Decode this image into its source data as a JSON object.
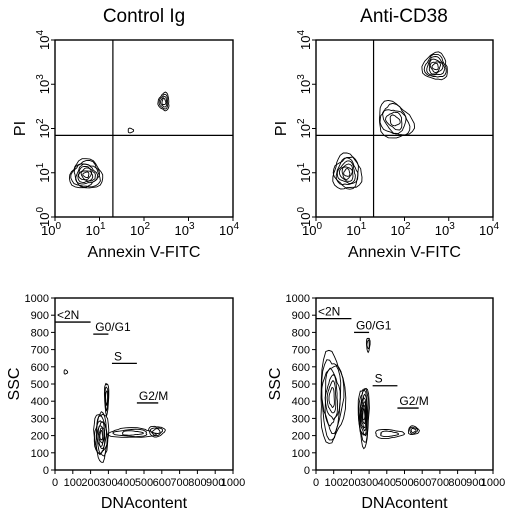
{
  "figure": {
    "panel_titles": [
      "Control Ig",
      "Anti-CD38"
    ]
  },
  "chart_data": [
    {
      "type": "scatter",
      "subtype": "contour",
      "title": "Control Ig",
      "xlabel": "Annexin V-FITC",
      "ylabel": "PI",
      "scale": "log",
      "xlim": [
        1,
        10000
      ],
      "ylim": [
        1,
        10000
      ],
      "x_ticks": [
        {
          "base": "10",
          "exp": "0"
        },
        {
          "base": "10",
          "exp": "1"
        },
        {
          "base": "10",
          "exp": "2"
        },
        {
          "base": "10",
          "exp": "3"
        },
        {
          "base": "10",
          "exp": "4"
        }
      ],
      "y_ticks": [
        {
          "base": "10",
          "exp": "0"
        },
        {
          "base": "10",
          "exp": "1"
        },
        {
          "base": "10",
          "exp": "2"
        },
        {
          "base": "10",
          "exp": "3"
        },
        {
          "base": "10",
          "exp": "4"
        }
      ],
      "quadrant_gate": {
        "x": 20,
        "y": 70
      },
      "populations": [
        {
          "x": 5,
          "y": 9,
          "sx": 0.36,
          "sy": 0.33,
          "levels": 8
        },
        {
          "x": 280,
          "y": 400,
          "sx": 0.12,
          "sy": 0.2,
          "levels": 4
        },
        {
          "x": 50,
          "y": 90,
          "sx": 0.06,
          "sy": 0.05,
          "levels": 1
        }
      ]
    },
    {
      "type": "scatter",
      "subtype": "contour",
      "title": "Anti-CD38",
      "xlabel": "Annexin V-FITC",
      "ylabel": "PI",
      "scale": "log",
      "xlim": [
        1,
        10000
      ],
      "ylim": [
        1,
        10000
      ],
      "x_ticks": [
        {
          "base": "10",
          "exp": "0"
        },
        {
          "base": "10",
          "exp": "1"
        },
        {
          "base": "10",
          "exp": "2"
        },
        {
          "base": "10",
          "exp": "3"
        },
        {
          "base": "10",
          "exp": "4"
        }
      ],
      "y_ticks": [
        {
          "base": "10",
          "exp": "0"
        },
        {
          "base": "10",
          "exp": "1"
        },
        {
          "base": "10",
          "exp": "2"
        },
        {
          "base": "10",
          "exp": "3"
        },
        {
          "base": "10",
          "exp": "4"
        }
      ],
      "quadrant_gate": {
        "x": 20,
        "y": 70
      },
      "populations": [
        {
          "x": 5,
          "y": 10,
          "sx": 0.32,
          "sy": 0.4,
          "levels": 7
        },
        {
          "x": 60,
          "y": 150,
          "sx": 0.35,
          "sy": 0.45,
          "levels": 5,
          "rotate": -38
        },
        {
          "x": 500,
          "y": 2500,
          "sx": 0.28,
          "sy": 0.3,
          "levels": 6
        }
      ]
    },
    {
      "type": "scatter",
      "subtype": "contour",
      "xlabel": "DNAcontent",
      "ylabel": "SSC",
      "scale": "linear",
      "xlim": [
        0,
        1000
      ],
      "ylim": [
        0,
        1000
      ],
      "x_ticks": [
        "0",
        "100",
        "200",
        "300",
        "400",
        "500",
        "600",
        "700",
        "800",
        "900",
        "1000"
      ],
      "y_ticks": [
        "0",
        "100",
        "200",
        "300",
        "400",
        "500",
        "600",
        "700",
        "800",
        "900",
        "1000"
      ],
      "gates": [
        {
          "label": "<2N",
          "x1": 0,
          "x2": 200,
          "y": 860
        },
        {
          "label": "G0/G1",
          "x1": 215,
          "x2": 300,
          "y": 790
        },
        {
          "label": "S",
          "x1": 320,
          "x2": 460,
          "y": 620
        },
        {
          "label": "G2/M",
          "x1": 460,
          "x2": 580,
          "y": 390
        }
      ],
      "populations": [
        {
          "x": 260,
          "y": 200,
          "sx": 40,
          "sy": 140,
          "levels": 8
        },
        {
          "x": 290,
          "y": 420,
          "sx": 12,
          "sy": 90,
          "levels": 3
        },
        {
          "x": 430,
          "y": 215,
          "sx": 130,
          "sy": 28,
          "levels": 3
        },
        {
          "x": 570,
          "y": 225,
          "sx": 45,
          "sy": 30,
          "levels": 3
        },
        {
          "x": 60,
          "y": 570,
          "sx": 10,
          "sy": 12,
          "levels": 1
        }
      ]
    },
    {
      "type": "scatter",
      "subtype": "contour",
      "xlabel": "DNAcontent",
      "ylabel": "SSC",
      "scale": "linear",
      "xlim": [
        0,
        1000
      ],
      "ylim": [
        0,
        1000
      ],
      "x_ticks": [
        "0",
        "100",
        "200",
        "300",
        "400",
        "500",
        "600",
        "700",
        "800",
        "900",
        "1000"
      ],
      "y_ticks": [
        "0",
        "100",
        "200",
        "300",
        "400",
        "500",
        "600",
        "700",
        "800",
        "900",
        "1000"
      ],
      "gates": [
        {
          "label": "<2N",
          "x1": 0,
          "x2": 200,
          "y": 880
        },
        {
          "label": "G0/G1",
          "x1": 215,
          "x2": 300,
          "y": 800
        },
        {
          "label": "S",
          "x1": 320,
          "x2": 460,
          "y": 490
        },
        {
          "label": "G2/M",
          "x1": 460,
          "x2": 580,
          "y": 360
        }
      ],
      "populations": [
        {
          "x": 90,
          "y": 420,
          "sx": 70,
          "sy": 260,
          "levels": 7
        },
        {
          "x": 270,
          "y": 320,
          "sx": 30,
          "sy": 170,
          "levels": 8
        },
        {
          "x": 410,
          "y": 210,
          "sx": 80,
          "sy": 25,
          "levels": 2
        },
        {
          "x": 550,
          "y": 230,
          "sx": 30,
          "sy": 25,
          "levels": 3
        },
        {
          "x": 295,
          "y": 730,
          "sx": 10,
          "sy": 40,
          "levels": 2
        }
      ]
    }
  ]
}
